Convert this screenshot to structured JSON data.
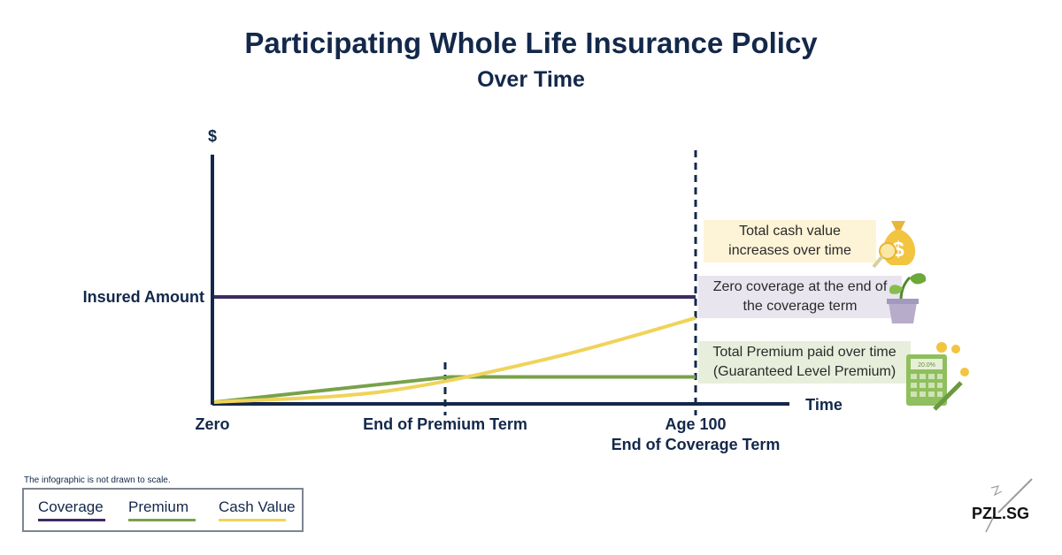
{
  "header": {
    "title": "Participating Whole Life Insurance Policy",
    "subtitle": "Over Time"
  },
  "chart_data": {
    "type": "line",
    "ylabel": "$",
    "xlabel": "Time",
    "x_ticks": [
      "Zero",
      "End of Premium Term",
      "Age 100"
    ],
    "x_tick_sublabel": "End of Coverage Term",
    "y_ticks": [
      "Insured Amount"
    ],
    "grid": false,
    "series": [
      {
        "name": "Coverage",
        "color": "#3d2b63",
        "description_points": [
          [
            0,
            1.0
          ],
          [
            1.0,
            1.0
          ]
        ]
      },
      {
        "name": "Premium",
        "color": "#78a24a",
        "description_points": [
          [
            0,
            0
          ],
          [
            0.49,
            0.24
          ],
          [
            1.0,
            0.24
          ]
        ]
      },
      {
        "name": "Cash Value",
        "color": "#f0d35a",
        "description_points": [
          [
            0,
            0
          ],
          [
            0.35,
            0.1
          ],
          [
            0.7,
            0.42
          ],
          [
            1.0,
            0.8
          ]
        ]
      }
    ],
    "annotations": {
      "cash_value": [
        "Total cash value",
        "increases over time"
      ],
      "coverage": [
        "Zero coverage at the end of",
        "the coverage term"
      ],
      "premium": [
        "Total Premium paid over time",
        "(Guaranteed Level Premium)"
      ]
    }
  },
  "footer": {
    "note": "The infographic is not drawn to scale.",
    "brand": "PZL.SG"
  },
  "legend": {
    "items": [
      {
        "label": "Coverage",
        "color": "#3d2b63"
      },
      {
        "label": "Premium",
        "color": "#78a24a"
      },
      {
        "label": "Cash Value",
        "color": "#f0d35a"
      }
    ]
  },
  "icons": {
    "cash": "money-bag-icon",
    "coverage": "plant-pot-icon",
    "premium": "calculator-icon",
    "calculator_display": "20.0%"
  }
}
